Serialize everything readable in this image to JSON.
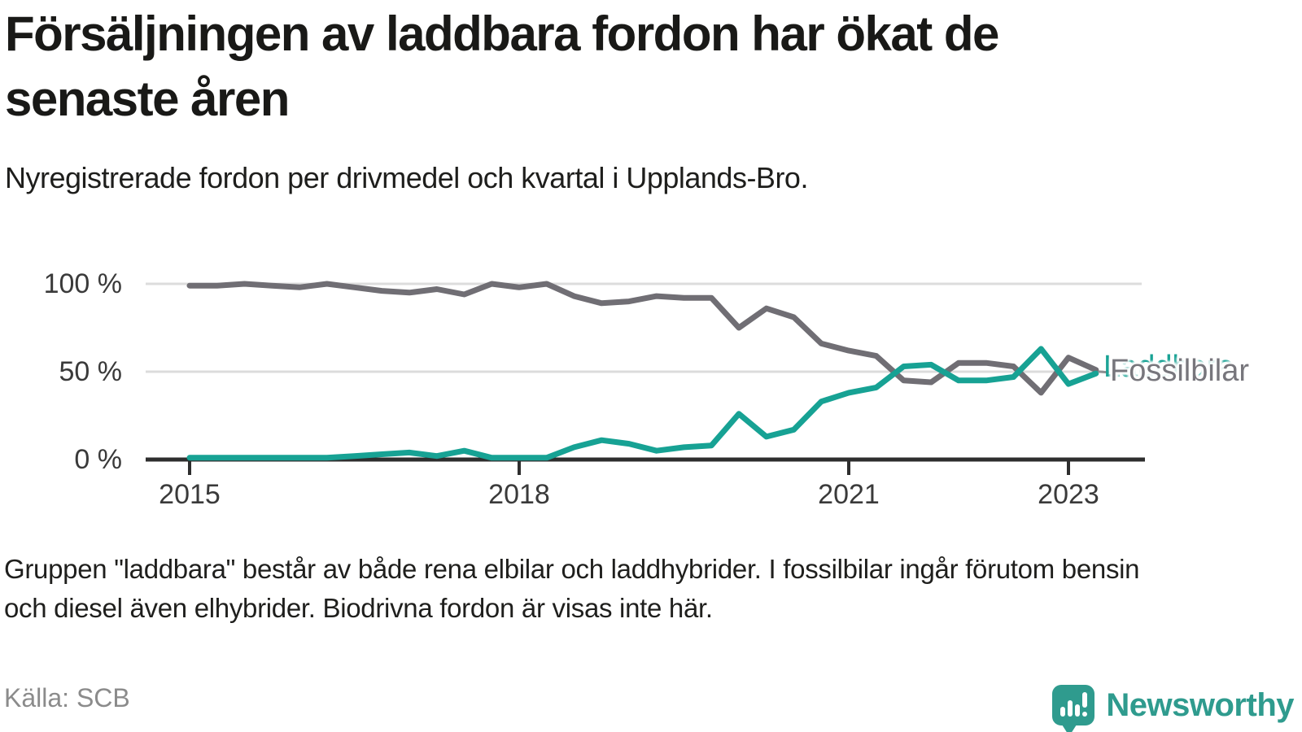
{
  "title": {
    "lines": [
      "Försäljningen av laddbara fordon har ökat de",
      "senaste åren"
    ]
  },
  "subtitle": "Nyregistrerade fordon per drivmedel och kvartal i Upplands-Bro.",
  "footnote": {
    "lines": [
      "Gruppen \"laddbara\" består av både rena elbilar och laddhybrider. I fossilbilar ingår förutom bensin",
      "och diesel även elhybrider. Biodrivna fordon är visas inte här."
    ]
  },
  "source": {
    "label": "Källa: SCB"
  },
  "brand": {
    "name": "Newsworthy",
    "icon": "newsworthy-speech-bubble-chart-icon",
    "color": "#2f9b8e"
  },
  "colors": {
    "fossil_line": "#706e74",
    "laddbara_line": "#17a294",
    "grid": "#dcdcdc",
    "axis": "#2e2e2e",
    "tick_text": "#3a3a3a",
    "end_label_text": "#77767c",
    "title_text": "#191917",
    "muted_text": "#8b8b8b"
  },
  "chart_data": {
    "type": "line",
    "title": "Försäljningen av laddbara fordon har ökat de senaste åren",
    "subtitle": "Nyregistrerade fordon per drivmedel och kvartal i Upplands-Bro.",
    "x_unit": "quarter",
    "x_quarters": [
      "2015 Q1",
      "2015 Q2",
      "2015 Q3",
      "2015 Q4",
      "2016 Q1",
      "2016 Q2",
      "2016 Q3",
      "2016 Q4",
      "2017 Q1",
      "2017 Q2",
      "2017 Q3",
      "2017 Q4",
      "2018 Q1",
      "2018 Q2",
      "2018 Q3",
      "2018 Q4",
      "2019 Q1",
      "2019 Q2",
      "2019 Q3",
      "2019 Q4",
      "2020 Q1",
      "2020 Q2",
      "2020 Q3",
      "2020 Q4",
      "2021 Q1",
      "2021 Q2",
      "2021 Q3",
      "2021 Q4",
      "2022 Q1",
      "2022 Q2",
      "2022 Q3",
      "2022 Q4",
      "2023 Q1",
      "2023 Q2"
    ],
    "series": [
      {
        "name": "Fossilbilar",
        "color": "#706e74",
        "values": [
          99,
          99,
          100,
          99,
          98,
          100,
          98,
          96,
          95,
          97,
          94,
          100,
          98,
          100,
          93,
          89,
          90,
          93,
          92,
          92,
          75,
          86,
          81,
          66,
          62,
          59,
          45,
          44,
          55,
          55,
          53,
          38,
          58,
          51
        ]
      },
      {
        "name": "Laddbara",
        "color": "#17a294",
        "values": [
          1,
          1,
          1,
          1,
          1,
          1,
          2,
          3,
          4,
          2,
          5,
          1,
          1,
          1,
          7,
          11,
          9,
          5,
          7,
          8,
          26,
          13,
          17,
          33,
          38,
          41,
          53,
          54,
          45,
          45,
          47,
          63,
          43,
          49
        ]
      }
    ],
    "ylim": [
      0,
      100
    ],
    "yticks": [
      {
        "label": "100 %",
        "value": 100
      },
      {
        "label": "50 %",
        "value": 50
      },
      {
        "label": "0 %",
        "value": 0
      }
    ],
    "xticks": [
      {
        "label": "2015",
        "year": 2015
      },
      {
        "label": "2018",
        "year": 2018
      },
      {
        "label": "2021",
        "year": 2021
      },
      {
        "label": "2023",
        "year": 2023
      }
    ],
    "grid": "horizontal",
    "legend_position": "line-end",
    "end_label": "Fossilbilar",
    "hidden_end_label": "Laddbara"
  }
}
